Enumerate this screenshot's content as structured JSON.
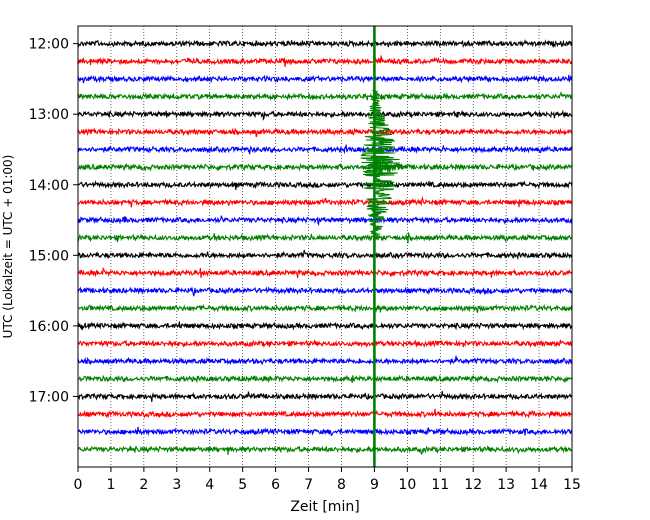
{
  "chart_data": {
    "type": "line",
    "title": "",
    "xlabel": "Zeit  [min]",
    "ylabel": "UTC (Lokalzeit = UTC + 01:00)",
    "xlim": [
      0,
      15
    ],
    "x_ticks": [
      "0",
      "1",
      "2",
      "3",
      "4",
      "5",
      "6",
      "7",
      "8",
      "9",
      "10",
      "11",
      "12",
      "13",
      "14",
      "15"
    ],
    "y_time_range": [
      "11:45",
      "18:00"
    ],
    "y_ticks": [
      "12:00",
      "13:00",
      "14:00",
      "15:00",
      "16:00",
      "17:00"
    ],
    "grid": "vertical dotted lines at each minute",
    "trace_interval_minutes": 15,
    "trace_colors_cycle": [
      "#000000",
      "#ff0000",
      "#0000ff",
      "#008000"
    ],
    "traces": [
      {
        "start": "12:00",
        "color": "#000000"
      },
      {
        "start": "12:15",
        "color": "#ff0000"
      },
      {
        "start": "12:30",
        "color": "#0000ff"
      },
      {
        "start": "12:45",
        "color": "#008000"
      },
      {
        "start": "13:00",
        "color": "#000000"
      },
      {
        "start": "13:15",
        "color": "#ff0000"
      },
      {
        "start": "13:30",
        "color": "#0000ff"
      },
      {
        "start": "13:45",
        "color": "#008000"
      },
      {
        "start": "14:00",
        "color": "#000000"
      },
      {
        "start": "14:15",
        "color": "#ff0000"
      },
      {
        "start": "14:30",
        "color": "#0000ff"
      },
      {
        "start": "14:45",
        "color": "#008000"
      },
      {
        "start": "15:00",
        "color": "#000000"
      },
      {
        "start": "15:15",
        "color": "#ff0000"
      },
      {
        "start": "15:30",
        "color": "#0000ff"
      },
      {
        "start": "15:45",
        "color": "#008000"
      },
      {
        "start": "16:00",
        "color": "#000000"
      },
      {
        "start": "16:15",
        "color": "#ff0000"
      },
      {
        "start": "16:30",
        "color": "#0000ff"
      },
      {
        "start": "16:45",
        "color": "#008000"
      },
      {
        "start": "17:00",
        "color": "#000000"
      },
      {
        "start": "17:15",
        "color": "#ff0000"
      },
      {
        "start": "17:30",
        "color": "#0000ff"
      },
      {
        "start": "17:45",
        "color": "#008000"
      }
    ],
    "event": {
      "description": "seismic signal",
      "x_minute": 9.0,
      "color": "#008000",
      "peak_trace": "13:45"
    }
  }
}
